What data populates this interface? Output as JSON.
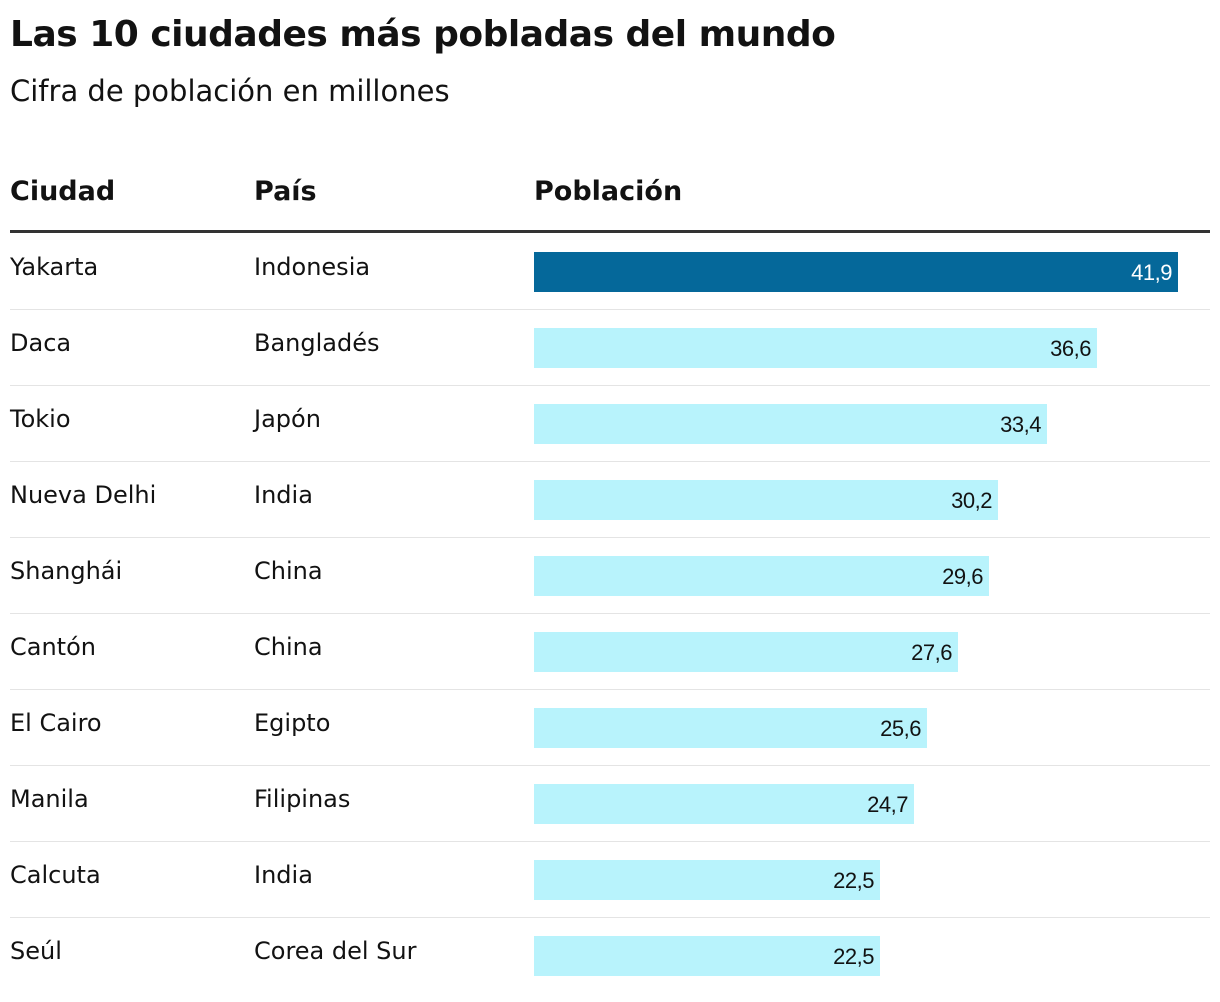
{
  "title": "Las 10 ciudades más pobladas del mundo",
  "subtitle": "Cifra de población en millones",
  "columns": {
    "city": "Ciudad",
    "country": "País",
    "population": "Población"
  },
  "colors": {
    "highlight_bar": "#05689a",
    "bar": "#b8f3fc",
    "highlight_label": "#ffffff",
    "label": "#121212"
  },
  "chart_data": {
    "type": "bar",
    "orientation": "horizontal",
    "title": "Las 10 ciudades más pobladas del mundo",
    "subtitle": "Cifra de población en millones",
    "xlim": [
      0,
      41.9
    ],
    "highlight_index": 0,
    "rows": [
      {
        "city": "Yakarta",
        "country": "Indonesia",
        "value": 41.9,
        "label": "41,9"
      },
      {
        "city": "Daca",
        "country": "Bangladés",
        "value": 36.6,
        "label": "36,6"
      },
      {
        "city": "Tokio",
        "country": "Japón",
        "value": 33.4,
        "label": "33,4"
      },
      {
        "city": "Nueva Delhi",
        "country": "India",
        "value": 30.2,
        "label": "30,2"
      },
      {
        "city": "Shanghái",
        "country": "China",
        "value": 29.6,
        "label": "29,6"
      },
      {
        "city": "Cantón",
        "country": "China",
        "value": 27.6,
        "label": "27,6"
      },
      {
        "city": "El Cairo",
        "country": "Egipto",
        "value": 25.6,
        "label": "25,6"
      },
      {
        "city": "Manila",
        "country": "Filipinas",
        "value": 24.7,
        "label": "24,7"
      },
      {
        "city": "Calcuta",
        "country": "India",
        "value": 22.5,
        "label": "22,5"
      },
      {
        "city": "Seúl",
        "country": "Corea del Sur",
        "value": 22.5,
        "label": "22,5"
      }
    ]
  }
}
